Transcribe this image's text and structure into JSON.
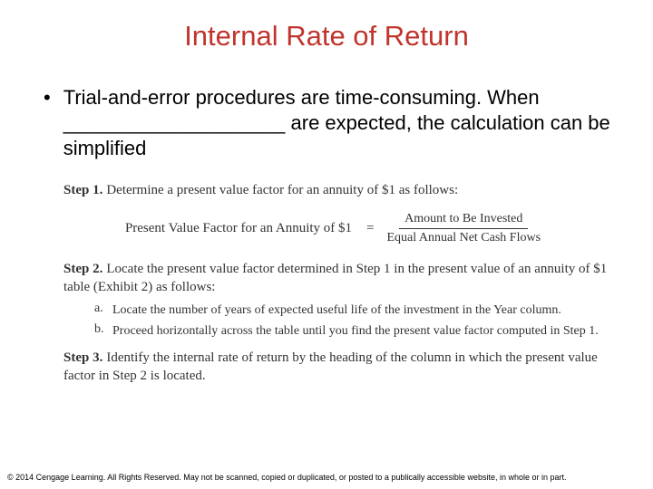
{
  "title": {
    "text": "Internal Rate of Return",
    "color": "#c0342c"
  },
  "bullet": {
    "text": "Trial-and-error procedures are time-consuming. When ____________________ are expected, the calculation can be simplified"
  },
  "steps": {
    "step1": {
      "label": "Step 1.",
      "text": "Determine a present value factor for an annuity of $1 as follows:"
    },
    "formula": {
      "left": "Present Value Factor for an Annuity of $1",
      "eq": "=",
      "numerator": "Amount to Be Invested",
      "denominator": "Equal Annual Net Cash Flows"
    },
    "step2": {
      "label": "Step 2.",
      "text": "Locate the present value factor determined in Step 1 in the present value of an annuity of $1 table (Exhibit 2) as follows:",
      "sub": {
        "a": {
          "label": "a.",
          "text": "Locate the number of years of expected useful life of the investment in the Year column."
        },
        "b": {
          "label": "b.",
          "text": "Proceed horizontally across the table until you find the present value factor computed in Step 1."
        }
      }
    },
    "step3": {
      "label": "Step 3.",
      "text": "Identify the internal rate of return by the heading of the column in which the present value factor in Step 2 is located."
    }
  },
  "copyright": "© 2014 Cengage Learning. All Rights Reserved. May not be scanned, copied or duplicated, or posted to a publically accessible website, in whole or in part."
}
